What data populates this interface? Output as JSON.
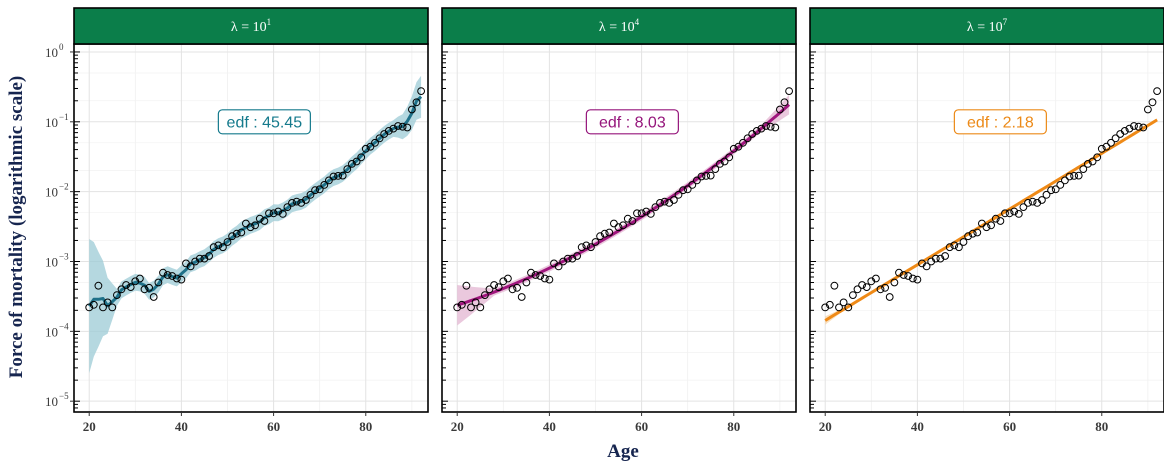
{
  "figure": {
    "ylabel": "Force of mortality (logarithmic scale)",
    "xlabel": "Age",
    "strip_color": "#0b7e4a",
    "y_ticks": [
      {
        "value": 1e-05,
        "base": "10",
        "exp": "−5"
      },
      {
        "value": 0.0001,
        "base": "10",
        "exp": "−4"
      },
      {
        "value": 0.001,
        "base": "10",
        "exp": "−3"
      },
      {
        "value": 0.01,
        "base": "10",
        "exp": "−2"
      },
      {
        "value": 0.1,
        "base": "10",
        "exp": "−1"
      },
      {
        "value": 1,
        "base": "10",
        "exp": "0"
      }
    ],
    "x_ticks": [
      20,
      40,
      60,
      80
    ]
  },
  "chart_data": [
    {
      "type": "scatter",
      "strip": {
        "prefix": "λ = 10",
        "exp": "1"
      },
      "annotation": {
        "text": "edf : 45.45",
        "color": "#157a8c",
        "age": 58,
        "value": 0.1
      },
      "xlim": [
        16.7,
        93.5
      ],
      "ylim": [
        7e-06,
        1.3
      ],
      "log_y": true,
      "fit": {
        "color": "#1f7189",
        "band_color": "#9ccbd6",
        "style": "wiggly"
      }
    },
    {
      "type": "scatter",
      "strip": {
        "prefix": "λ = 10",
        "exp": "4"
      },
      "annotation": {
        "text": "edf :  8.03",
        "color": "#95157b",
        "age": 58,
        "value": 0.1
      },
      "xlim": [
        16.7,
        93.5
      ],
      "ylim": [
        7e-06,
        1.3
      ],
      "log_y": true,
      "fit": {
        "color": "#a0167e",
        "band_color": "#e3b6d2",
        "style": "smooth"
      }
    },
    {
      "type": "scatter",
      "strip": {
        "prefix": "λ = 10",
        "exp": "7"
      },
      "annotation": {
        "text": "edf :  2.18",
        "color": "#ec8a18",
        "age": 58,
        "value": 0.1
      },
      "xlim": [
        16.7,
        93.5
      ],
      "ylim": [
        7e-06,
        1.3
      ],
      "log_y": true,
      "fit": {
        "color": "#ef8a17",
        "band_color": "#f8d6a9",
        "style": "linear"
      }
    }
  ],
  "observed": {
    "age": [
      20,
      21,
      22,
      23,
      24,
      25,
      26,
      27,
      28,
      29,
      30,
      31,
      32,
      33,
      34,
      35,
      36,
      37,
      38,
      39,
      40,
      41,
      42,
      43,
      44,
      45,
      46,
      47,
      48,
      49,
      50,
      51,
      52,
      53,
      54,
      55,
      56,
      57,
      58,
      59,
      60,
      61,
      62,
      63,
      64,
      65,
      66,
      67,
      68,
      69,
      70,
      71,
      72,
      73,
      74,
      75,
      76,
      77,
      78,
      79,
      80,
      81,
      82,
      83,
      84,
      85,
      86,
      87,
      88,
      89,
      90,
      91,
      92
    ],
    "mortality": [
      0.00022,
      0.00024,
      0.00045,
      0.00022,
      0.00026,
      0.00022,
      0.00033,
      0.0004,
      0.00046,
      0.00043,
      0.00052,
      0.00057,
      0.0004,
      0.00042,
      0.00031,
      0.0005,
      0.00069,
      0.00064,
      0.00062,
      0.00057,
      0.00055,
      0.00094,
      0.00085,
      0.001,
      0.0011,
      0.0011,
      0.0012,
      0.0016,
      0.0017,
      0.0016,
      0.0019,
      0.0023,
      0.0025,
      0.0026,
      0.0035,
      0.0031,
      0.0033,
      0.0041,
      0.0038,
      0.0049,
      0.0049,
      0.0052,
      0.0048,
      0.006,
      0.0069,
      0.0072,
      0.0069,
      0.0076,
      0.009,
      0.0105,
      0.0108,
      0.0125,
      0.0145,
      0.0165,
      0.0168,
      0.017,
      0.021,
      0.025,
      0.027,
      0.031,
      0.041,
      0.044,
      0.05,
      0.058,
      0.067,
      0.074,
      0.08,
      0.087,
      0.085,
      0.083,
      0.15,
      0.19,
      0.275
    ]
  }
}
